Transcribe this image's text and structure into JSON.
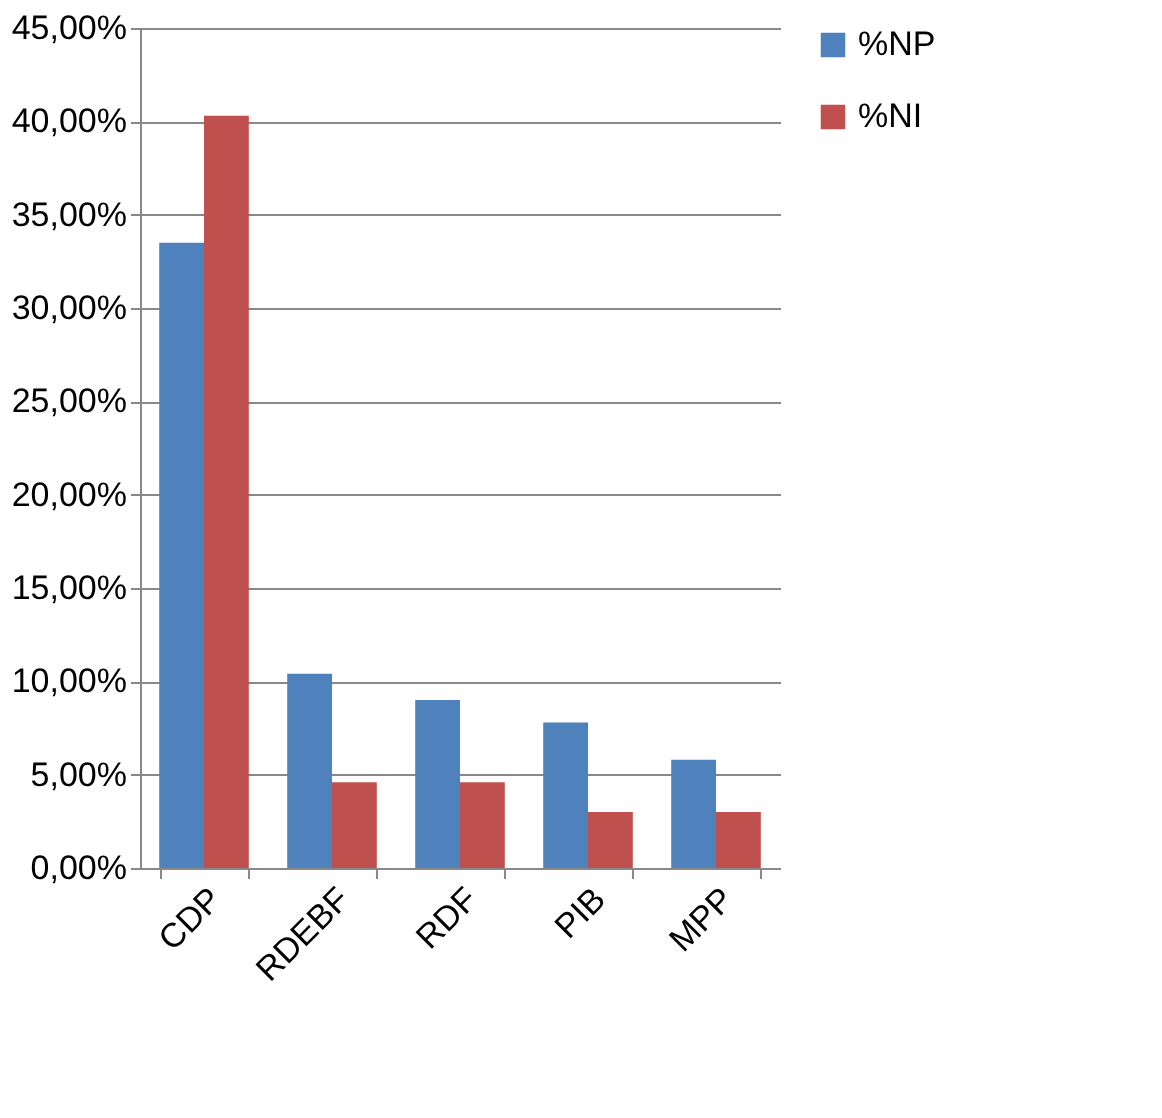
{
  "chart_data": {
    "type": "bar",
    "categories": [
      "CDP",
      "RDEBF",
      "RDF",
      "PIB",
      "MPP"
    ],
    "series": [
      {
        "name": "%NP",
        "color": "#4f81bd",
        "values": [
          33.5,
          10.4,
          9.0,
          7.8,
          5.8
        ]
      },
      {
        "name": "%NI",
        "color": "#c0504d",
        "values": [
          40.3,
          4.6,
          4.6,
          3.0,
          3.0
        ]
      }
    ],
    "ylim": [
      0,
      45
    ],
    "yticks": [
      {
        "value": 0,
        "label": "0,00%"
      },
      {
        "value": 5,
        "label": "5,00%"
      },
      {
        "value": 10,
        "label": "10,00%"
      },
      {
        "value": 15,
        "label": "15,00%"
      },
      {
        "value": 20,
        "label": "20,00%"
      },
      {
        "value": 25,
        "label": "25,00%"
      },
      {
        "value": 30,
        "label": "30,00%"
      },
      {
        "value": 35,
        "label": "35,00%"
      },
      {
        "value": 40,
        "label": "40,00%"
      },
      {
        "value": 45,
        "label": "45,00%"
      }
    ],
    "grid": "y",
    "legend": "right"
  }
}
